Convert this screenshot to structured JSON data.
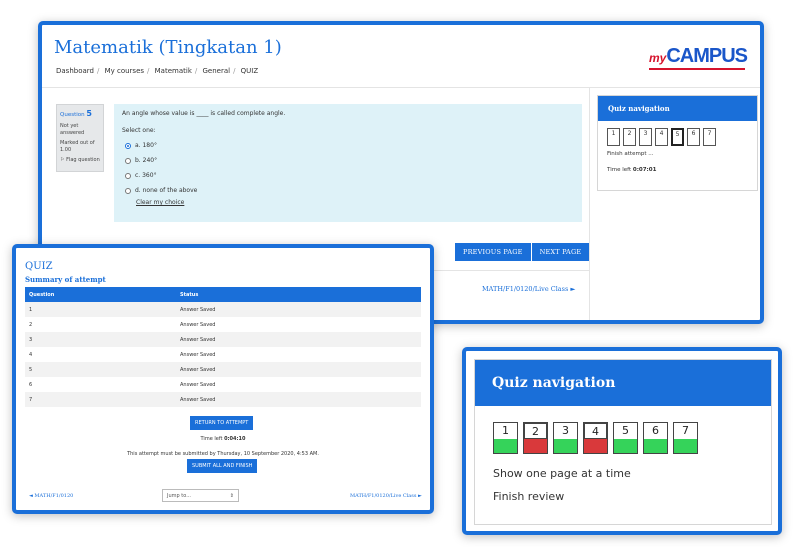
{
  "main": {
    "course_title": "Matematik (Tingkatan 1)",
    "breadcrumb": [
      "Dashboard",
      "My courses",
      "Matematik",
      "General",
      "QUIZ"
    ],
    "logo": {
      "my": "my",
      "campus": "CAMPUS"
    },
    "question_info": {
      "label": "Question",
      "number": "5",
      "status": "Not yet answered",
      "marked": "Marked out of 1.00",
      "flag": "Flag question"
    },
    "question": {
      "text": "An angle whose value is ____ is called complete angle.",
      "select_one": "Select one:",
      "options": [
        {
          "label": "a. 180°",
          "selected": true
        },
        {
          "label": "b. 240°",
          "selected": false
        },
        {
          "label": "c. 360°",
          "selected": false
        },
        {
          "label": "d. none of the above",
          "selected": false
        }
      ],
      "clear": "Clear my choice"
    },
    "buttons": {
      "previous": "PREVIOUS PAGE",
      "next": "NEXT PAGE"
    },
    "next_activity": "MATH/F1/0120/Live Class ►",
    "quiz_nav": {
      "title": "Quiz navigation",
      "questions": [
        "1",
        "2",
        "3",
        "4",
        "5",
        "6",
        "7"
      ],
      "current": "5",
      "finish": "Finish attempt ...",
      "time_label": "Time left",
      "time_value": "0:07:01"
    }
  },
  "summary": {
    "quiz_title": "QUIZ",
    "summary_title": "Summary of attempt",
    "columns": [
      "Question",
      "Status"
    ],
    "rows": [
      {
        "q": "1",
        "status": "Answer Saved"
      },
      {
        "q": "2",
        "status": "Answer Saved"
      },
      {
        "q": "3",
        "status": "Answer Saved"
      },
      {
        "q": "4",
        "status": "Answer Saved"
      },
      {
        "q": "5",
        "status": "Answer Saved"
      },
      {
        "q": "6",
        "status": "Answer Saved"
      },
      {
        "q": "7",
        "status": "Answer Saved"
      }
    ],
    "return_button": "RETURN TO ATTEMPT",
    "time_label": "Time left",
    "time_value": "0:04:10",
    "deadline": "This attempt must be submitted by Thursday, 10 September 2020, 4:53 AM.",
    "submit_button": "SUBMIT ALL AND FINISH",
    "prev_link": "◄ MATH/F1/0120",
    "jump_placeholder": "Jump to...",
    "next_link": "MATH/F1/0120/Live Class ►"
  },
  "review_nav": {
    "title": "Quiz navigation",
    "questions": [
      {
        "n": "1",
        "state": "correct"
      },
      {
        "n": "2",
        "state": "incorrect"
      },
      {
        "n": "3",
        "state": "correct"
      },
      {
        "n": "4",
        "state": "incorrect"
      },
      {
        "n": "5",
        "state": "correct"
      },
      {
        "n": "6",
        "state": "correct"
      },
      {
        "n": "7",
        "state": "correct"
      }
    ],
    "show_one_page": "Show one page at a time",
    "finish_review": "Finish review"
  },
  "colors": {
    "accent": "#1a6fd9",
    "correct": "#35d35a",
    "incorrect": "#d9393b"
  }
}
